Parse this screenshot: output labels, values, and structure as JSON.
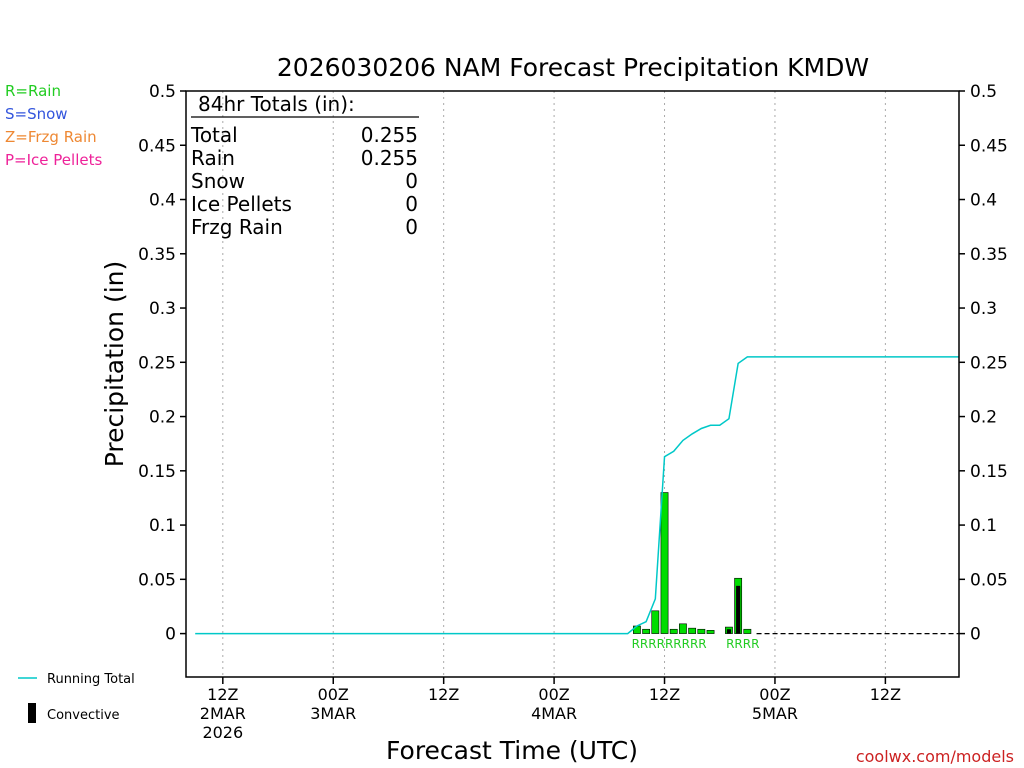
{
  "chart_data": {
    "type": "bar",
    "title": "2026030206 NAM Forecast Precipitation KMDW",
    "xlabel": "Forecast Time (UTC)",
    "ylabel": "Precipitation (in)",
    "ylim": [
      -0.04,
      0.5
    ],
    "yticks": [
      0,
      0.05,
      0.1,
      0.15,
      0.2,
      0.25,
      0.3,
      0.35,
      0.4,
      0.45,
      0.5
    ],
    "ytick_labels": [
      "0",
      "0.05",
      "0.1",
      "0.15",
      "0.2",
      "0.25",
      "0.3",
      "0.35",
      "0.4",
      "0.45",
      "0.5"
    ],
    "xlim_hours": [
      2,
      86
    ],
    "xticks": [
      {
        "hour": 6,
        "lines": [
          "12Z",
          "2MAR",
          "2026"
        ]
      },
      {
        "hour": 18,
        "lines": [
          "00Z",
          "3MAR"
        ]
      },
      {
        "hour": 30,
        "lines": [
          "12Z"
        ]
      },
      {
        "hour": 42,
        "lines": [
          "00Z",
          "4MAR"
        ]
      },
      {
        "hour": 54,
        "lines": [
          "12Z"
        ]
      },
      {
        "hour": 66,
        "lines": [
          "00Z",
          "5MAR"
        ]
      },
      {
        "hour": 78,
        "lines": [
          "12Z"
        ]
      }
    ],
    "series": [
      {
        "name": "Precipitation",
        "color": "#00dd00",
        "hours": [
          51,
          52,
          53,
          54,
          55,
          56,
          57,
          58,
          59,
          60,
          61,
          62,
          63,
          64
        ],
        "values": [
          0.007,
          0.004,
          0.021,
          0.13,
          0.004,
          0.009,
          0.005,
          0.004,
          0.003,
          0.0,
          0.006,
          0.051,
          0.004,
          0.0
        ]
      },
      {
        "name": "Convective",
        "color": "#000000",
        "hours": [
          61,
          62
        ],
        "values": [
          0.004,
          0.044
        ]
      },
      {
        "name": "Running Total",
        "color": "#00c8c8",
        "hours": [
          3,
          50,
          51,
          52,
          53,
          54,
          55,
          56,
          57,
          58,
          59,
          60,
          61,
          62,
          63,
          64,
          86
        ],
        "values": [
          0,
          0,
          0.007,
          0.011,
          0.032,
          0.163,
          0.168,
          0.178,
          0.184,
          0.189,
          0.192,
          0.192,
          0.198,
          0.249,
          0.255,
          0.255,
          0.255
        ]
      }
    ],
    "ptype_markers": [
      {
        "hour": 54.5,
        "text": "RRRRRRRRR"
      },
      {
        "hour": 62.5,
        "text": "RRRR"
      }
    ],
    "totals_box": {
      "header": "84hr Totals (in):",
      "rows": [
        {
          "label": "Total",
          "value": "0.255"
        },
        {
          "label": "Rain",
          "value": "0.255"
        },
        {
          "label": "Snow",
          "value": "0"
        },
        {
          "label": "Ice Pellets",
          "value": "0"
        },
        {
          "label": "Frzg Rain",
          "value": "0"
        }
      ]
    },
    "type_legend": [
      {
        "text": "R=Rain",
        "color": "#22cc22"
      },
      {
        "text": "S=Snow",
        "color": "#3355dd"
      },
      {
        "text": "Z=Frzg Rain",
        "color": "#ee8833"
      },
      {
        "text": "P=Ice Pellets",
        "color": "#ee2299"
      }
    ],
    "bottom_legend": [
      {
        "text": "Running Total",
        "kind": "line",
        "color": "#00c8c8"
      },
      {
        "text": "Convective",
        "kind": "bar",
        "color": "#000000"
      }
    ],
    "credit": "coolwx.com/models",
    "credit_color": "#cc2222"
  }
}
